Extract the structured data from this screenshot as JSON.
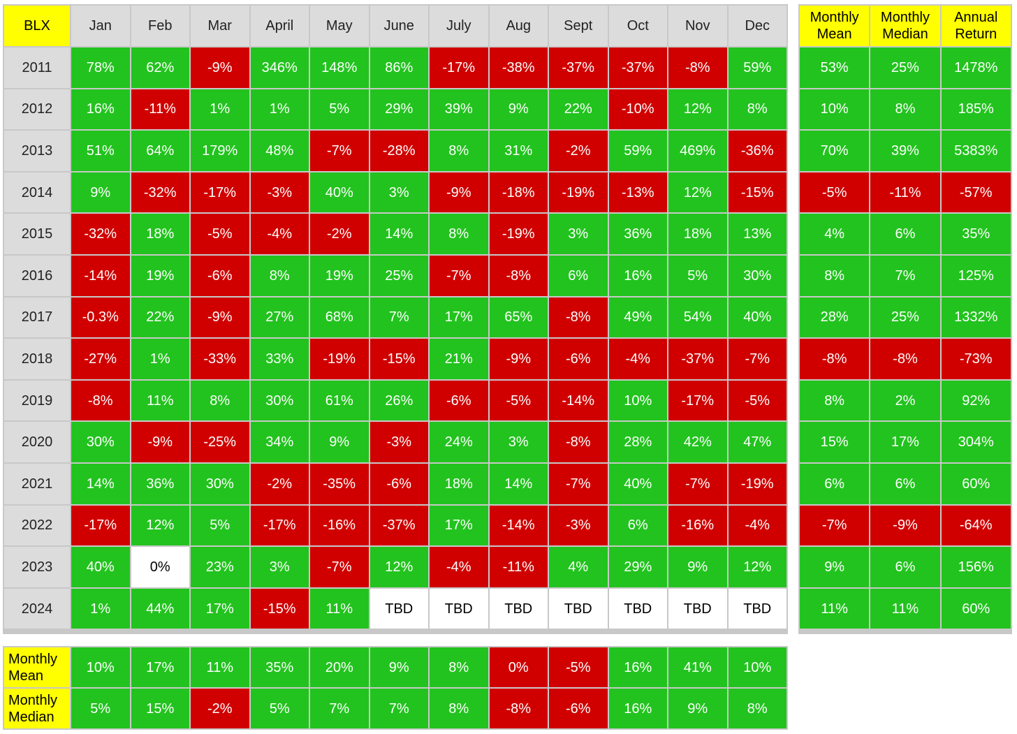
{
  "chart_data": {
    "type": "table",
    "corner_label": "BLX",
    "months": [
      "Jan",
      "Feb",
      "Mar",
      "April",
      "May",
      "June",
      "July",
      "Aug",
      "Sept",
      "Oct",
      "Nov",
      "Dec"
    ],
    "summary_columns": [
      "Monthly Mean",
      "Monthly Median",
      "Annual Return"
    ],
    "rows": [
      {
        "year": "2011",
        "values": [
          "78%",
          "62%",
          "-9%",
          "346%",
          "148%",
          "86%",
          "-17%",
          "-38%",
          "-37%",
          "-37%",
          "-8%",
          "59%"
        ],
        "summary": [
          "53%",
          "25%",
          "1478%"
        ]
      },
      {
        "year": "2012",
        "values": [
          "16%",
          "-11%",
          "1%",
          "1%",
          "5%",
          "29%",
          "39%",
          "9%",
          "22%",
          "-10%",
          "12%",
          "8%"
        ],
        "summary": [
          "10%",
          "8%",
          "185%"
        ]
      },
      {
        "year": "2013",
        "values": [
          "51%",
          "64%",
          "179%",
          "48%",
          "-7%",
          "-28%",
          "8%",
          "31%",
          "-2%",
          "59%",
          "469%",
          "-36%"
        ],
        "summary": [
          "70%",
          "39%",
          "5383%"
        ]
      },
      {
        "year": "2014",
        "values": [
          "9%",
          "-32%",
          "-17%",
          "-3%",
          "40%",
          "3%",
          "-9%",
          "-18%",
          "-19%",
          "-13%",
          "12%",
          "-15%"
        ],
        "summary": [
          "-5%",
          "-11%",
          "-57%"
        ]
      },
      {
        "year": "2015",
        "values": [
          "-32%",
          "18%",
          "-5%",
          "-4%",
          "-2%",
          "14%",
          "8%",
          "-19%",
          "3%",
          "36%",
          "18%",
          "13%"
        ],
        "summary": [
          "4%",
          "6%",
          "35%"
        ]
      },
      {
        "year": "2016",
        "values": [
          "-14%",
          "19%",
          "-6%",
          "8%",
          "19%",
          "25%",
          "-7%",
          "-8%",
          "6%",
          "16%",
          "5%",
          "30%"
        ],
        "summary": [
          "8%",
          "7%",
          "125%"
        ]
      },
      {
        "year": "2017",
        "values": [
          "-0.3%",
          "22%",
          "-9%",
          "27%",
          "68%",
          "7%",
          "17%",
          "65%",
          "-8%",
          "49%",
          "54%",
          "40%"
        ],
        "summary": [
          "28%",
          "25%",
          "1332%"
        ]
      },
      {
        "year": "2018",
        "values": [
          "-27%",
          "1%",
          "-33%",
          "33%",
          "-19%",
          "-15%",
          "21%",
          "-9%",
          "-6%",
          "-4%",
          "-37%",
          "-7%"
        ],
        "summary": [
          "-8%",
          "-8%",
          "-73%"
        ]
      },
      {
        "year": "2019",
        "values": [
          "-8%",
          "11%",
          "8%",
          "30%",
          "61%",
          "26%",
          "-6%",
          "-5%",
          "-14%",
          "10%",
          "-17%",
          "-5%"
        ],
        "summary": [
          "8%",
          "2%",
          "92%"
        ]
      },
      {
        "year": "2020",
        "values": [
          "30%",
          "-9%",
          "-25%",
          "34%",
          "9%",
          "-3%",
          "24%",
          "3%",
          "-8%",
          "28%",
          "42%",
          "47%"
        ],
        "summary": [
          "15%",
          "17%",
          "304%"
        ]
      },
      {
        "year": "2021",
        "values": [
          "14%",
          "36%",
          "30%",
          "-2%",
          "-35%",
          "-6%",
          "18%",
          "14%",
          "-7%",
          "40%",
          "-7%",
          "-19%"
        ],
        "summary": [
          "6%",
          "6%",
          "60%"
        ]
      },
      {
        "year": "2022",
        "values": [
          "-17%",
          "12%",
          "5%",
          "-17%",
          "-16%",
          "-37%",
          "17%",
          "-14%",
          "-3%",
          "6%",
          "-16%",
          "-4%"
        ],
        "summary": [
          "-7%",
          "-9%",
          "-64%"
        ]
      },
      {
        "year": "2023",
        "values": [
          "40%",
          "0%",
          "23%",
          "3%",
          "-7%",
          "12%",
          "-4%",
          "-11%",
          "4%",
          "29%",
          "9%",
          "12%"
        ],
        "summary": [
          "9%",
          "6%",
          "156%"
        ]
      },
      {
        "year": "2024",
        "values": [
          "1%",
          "44%",
          "17%",
          "-15%",
          "11%",
          "TBD",
          "TBD",
          "TBD",
          "TBD",
          "TBD",
          "TBD",
          "TBD"
        ],
        "summary": [
          "11%",
          "11%",
          "60%"
        ]
      }
    ],
    "bottom_rows": [
      {
        "label": "Monthly Mean",
        "values": [
          "10%",
          "17%",
          "11%",
          "35%",
          "20%",
          "9%",
          "8%",
          "0%",
          "-5%",
          "16%",
          "41%",
          "10%"
        ]
      },
      {
        "label": "Monthly Median",
        "values": [
          "5%",
          "15%",
          "-2%",
          "5%",
          "7%",
          "7%",
          "8%",
          "-8%",
          "-6%",
          "16%",
          "9%",
          "8%"
        ]
      }
    ],
    "colors": {
      "positive": "#22c31e",
      "negative": "#d00000",
      "neutral": "#ffffff",
      "header_yellow": "#ffff00",
      "header_gray": "#dcdcdc"
    }
  }
}
